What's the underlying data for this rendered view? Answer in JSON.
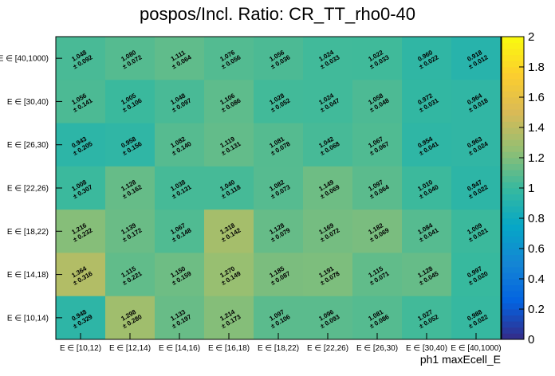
{
  "chart_data": {
    "type": "heatmap",
    "title": "pospos/Incl. Ratio: CR_TT_rho0-40",
    "xlabel": "ph1 maxEcell_E",
    "ylabel": "",
    "x_categories": [
      "E ∈ [10,12)",
      "E ∈ [12,14)",
      "E ∈ [14,16)",
      "E ∈ [16,18)",
      "E ∈ [18,22)",
      "E ∈ [22,26)",
      "E ∈ [26,30)",
      "E ∈ [30,40)",
      "E ∈ [40,1000)"
    ],
    "y_categories": [
      "E ∈ [40,1000)",
      "E ∈ [30,40)",
      "E ∈ [26,30)",
      "E ∈ [22,26)",
      "E ∈ [18,22)",
      "E ∈ [14,18)",
      "E ∈ [10,14)"
    ],
    "values": [
      [
        1.048,
        1.08,
        1.111,
        1.076,
        1.056,
        1.024,
        1.022,
        0.96,
        0.918
      ],
      [
        1.056,
        1.005,
        1.048,
        1.106,
        1.028,
        1.024,
        1.058,
        0.972,
        0.964
      ],
      [
        0.943,
        0.958,
        1.082,
        1.119,
        1.081,
        1.042,
        1.067,
        0.954,
        0.963
      ],
      [
        1.008,
        1.128,
        1.038,
        1.04,
        1.082,
        1.149,
        1.097,
        1.01,
        0.947
      ],
      [
        1.216,
        1.139,
        1.067,
        1.318,
        1.128,
        1.169,
        1.182,
        1.084,
        1.009
      ],
      [
        1.364,
        1.115,
        1.15,
        1.27,
        1.185,
        1.191,
        1.115,
        1.128,
        0.997
      ],
      [
        0.948,
        1.298,
        1.133,
        1.214,
        1.097,
        1.096,
        1.081,
        1.027,
        0.988
      ]
    ],
    "errors": [
      [
        0.092,
        0.072,
        0.064,
        0.056,
        0.036,
        0.033,
        0.033,
        0.022,
        0.012
      ],
      [
        0.141,
        0.106,
        0.097,
        0.086,
        0.052,
        0.047,
        0.048,
        0.031,
        0.018
      ],
      [
        0.205,
        0.156,
        0.14,
        0.131,
        0.078,
        0.068,
        0.067,
        0.041,
        0.024
      ],
      [
        0.307,
        0.162,
        0.131,
        0.118,
        0.073,
        0.069,
        0.064,
        0.04,
        0.022
      ],
      [
        0.232,
        0.172,
        0.148,
        0.142,
        0.079,
        0.072,
        0.069,
        0.041,
        0.021
      ],
      [
        0.316,
        0.221,
        0.159,
        0.149,
        0.087,
        0.078,
        0.071,
        0.045,
        0.02
      ],
      [
        0.329,
        0.28,
        0.197,
        0.173,
        0.106,
        0.093,
        0.086,
        0.052,
        0.022
      ]
    ],
    "zlim": [
      0,
      2
    ],
    "z_ticks": [
      "0",
      "0.2",
      "0.4",
      "0.6",
      "0.8",
      "1",
      "1.2",
      "1.4",
      "1.6",
      "1.8",
      "2"
    ],
    "colorbar": "right",
    "palette": [
      "#352a87",
      "#0363e1",
      "#1485d4",
      "#06a7c6",
      "#38b99e",
      "#92bf73",
      "#d9ba56",
      "#fcce2e",
      "#f9fb0e"
    ]
  }
}
